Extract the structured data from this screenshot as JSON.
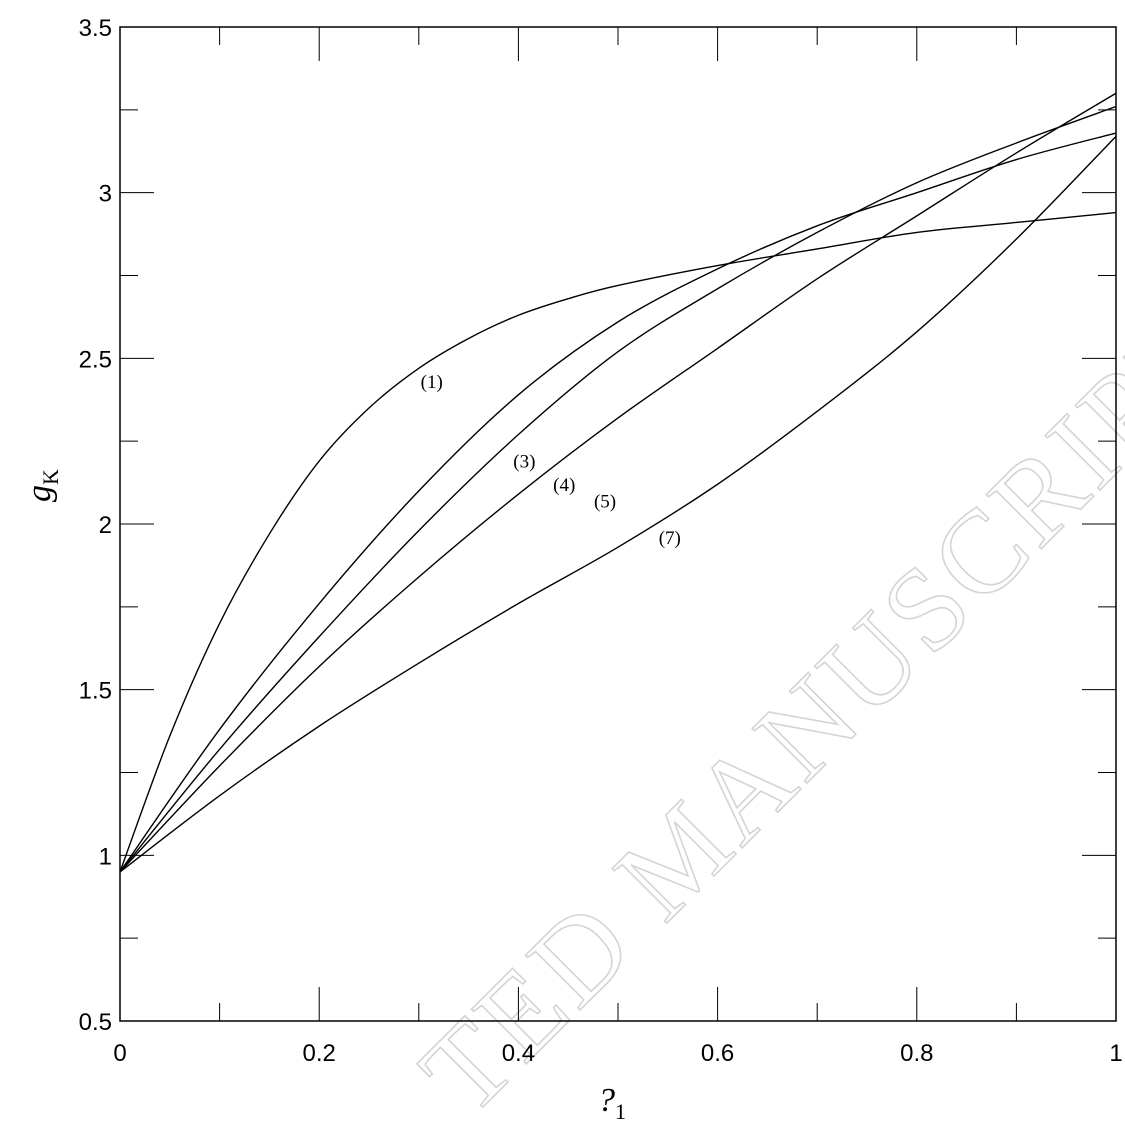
{
  "chart_data": {
    "type": "line",
    "title": "",
    "xlabel": "?",
    "xlabel_sub": "1",
    "ylabel": "g",
    "ylabel_sub": "K",
    "xlim": [
      0,
      1
    ],
    "ylim": [
      0.5,
      3.5
    ],
    "x_ticks": [
      "0",
      "0.2",
      "0.4",
      "0.6",
      "0.8",
      "1"
    ],
    "y_ticks": [
      "0.5",
      "1",
      "1.5",
      "2",
      "2.5",
      "3",
      "3.5"
    ],
    "grid": false,
    "legend": "none",
    "series": [
      {
        "label": "(1)",
        "x": [
          0,
          0.05,
          0.1,
          0.15,
          0.2,
          0.25,
          0.3,
          0.35,
          0.4,
          0.45,
          0.5,
          0.6,
          0.7,
          0.8,
          0.9,
          1.0
        ],
        "y": [
          0.95,
          1.36,
          1.7,
          1.97,
          2.19,
          2.35,
          2.47,
          2.56,
          2.63,
          2.68,
          2.72,
          2.78,
          2.83,
          2.88,
          2.91,
          2.94
        ]
      },
      {
        "label": "(3)",
        "x": [
          0,
          0.1,
          0.2,
          0.3,
          0.4,
          0.5,
          0.6,
          0.7,
          0.8,
          0.9,
          1.0
        ],
        "y": [
          0.95,
          1.38,
          1.76,
          2.1,
          2.39,
          2.61,
          2.77,
          2.9,
          3.0,
          3.1,
          3.18
        ]
      },
      {
        "label": "(4)",
        "x": [
          0,
          0.1,
          0.2,
          0.3,
          0.4,
          0.5,
          0.6,
          0.7,
          0.8,
          0.9,
          1.0
        ],
        "y": [
          0.95,
          1.32,
          1.66,
          1.98,
          2.27,
          2.52,
          2.71,
          2.88,
          3.03,
          3.15,
          3.26
        ]
      },
      {
        "label": "(5)",
        "x": [
          0,
          0.1,
          0.2,
          0.3,
          0.4,
          0.5,
          0.6,
          0.7,
          0.8,
          0.9,
          1.0
        ],
        "y": [
          0.95,
          1.27,
          1.57,
          1.84,
          2.09,
          2.32,
          2.53,
          2.74,
          2.93,
          3.12,
          3.3
        ]
      },
      {
        "label": "(7)",
        "x": [
          0,
          0.1,
          0.2,
          0.3,
          0.4,
          0.5,
          0.6,
          0.7,
          0.8,
          0.9,
          1.0
        ],
        "y": [
          0.95,
          1.18,
          1.39,
          1.58,
          1.76,
          1.93,
          2.12,
          2.34,
          2.58,
          2.86,
          3.17
        ]
      }
    ],
    "annotations": [
      {
        "text": "(1)",
        "x": 0.313,
        "y": 2.41
      },
      {
        "text": "(3)",
        "x": 0.406,
        "y": 2.17
      },
      {
        "text": "(4)",
        "x": 0.446,
        "y": 2.1
      },
      {
        "text": "(5)",
        "x": 0.487,
        "y": 2.05
      },
      {
        "text": "(7)",
        "x": 0.552,
        "y": 1.94
      }
    ]
  },
  "watermark": {
    "text": "ACCEPTED MANUSCRIPT",
    "visible_text": "TED MANUSCRIPT",
    "color": "#d4d4d4"
  },
  "colors": {
    "line": "#000000",
    "background": "#ffffff"
  }
}
